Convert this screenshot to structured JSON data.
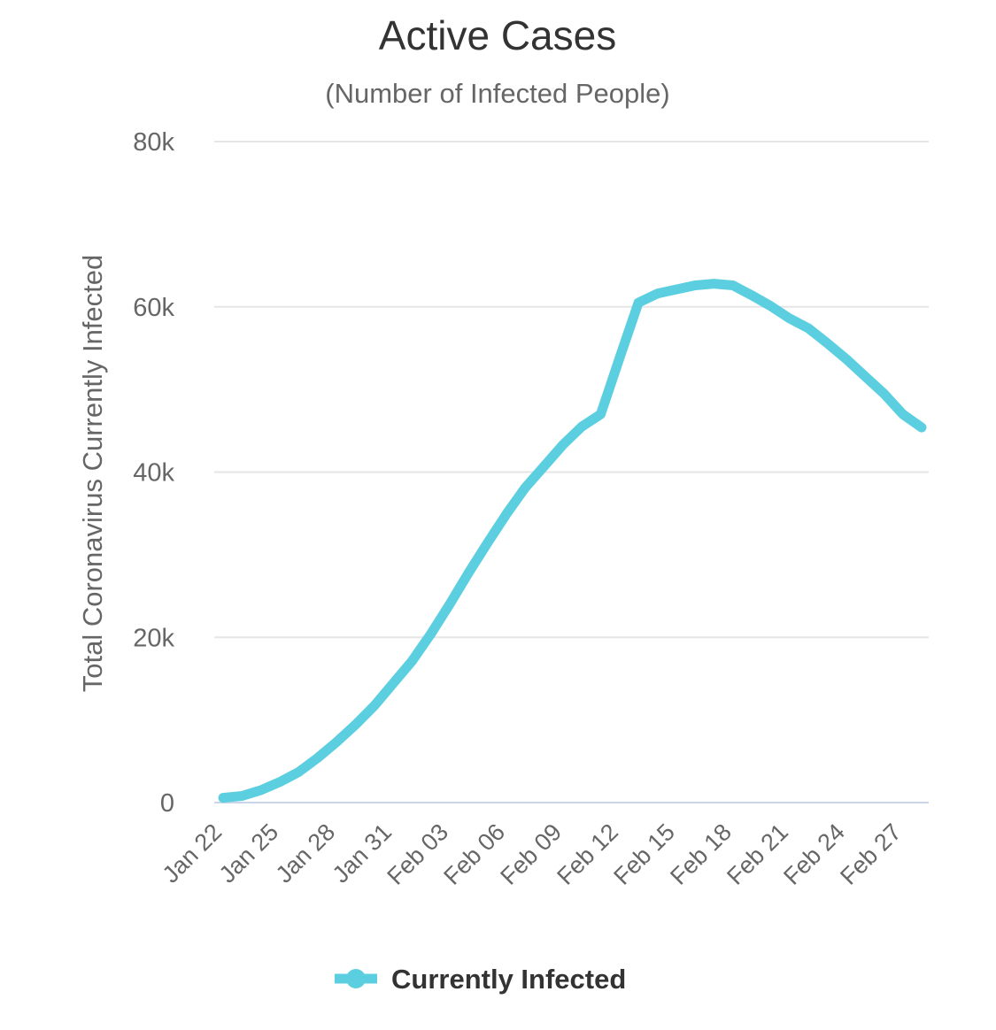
{
  "chart_data": {
    "type": "line",
    "title": "Active Cases",
    "subtitle": "(Number of Infected People)",
    "ylabel": "Total Coronavirus Currently Infected",
    "xlabel": "",
    "ylim": [
      0,
      80000
    ],
    "yticks": [
      0,
      20000,
      40000,
      60000,
      80000
    ],
    "ytick_labels": [
      "0",
      "20k",
      "40k",
      "60k",
      "80k"
    ],
    "xtick_labels": [
      "Jan 22",
      "Jan 25",
      "Jan 28",
      "Jan 31",
      "Feb 03",
      "Feb 06",
      "Feb 09",
      "Feb 12",
      "Feb 15",
      "Feb 18",
      "Feb 21",
      "Feb 24",
      "Feb 27"
    ],
    "grid": true,
    "legend": "bottom-center",
    "categories": [
      "Jan 22",
      "Jan 23",
      "Jan 24",
      "Jan 25",
      "Jan 26",
      "Jan 27",
      "Jan 28",
      "Jan 29",
      "Jan 30",
      "Jan 31",
      "Feb 01",
      "Feb 02",
      "Feb 03",
      "Feb 04",
      "Feb 05",
      "Feb 06",
      "Feb 07",
      "Feb 08",
      "Feb 09",
      "Feb 10",
      "Feb 11",
      "Feb 12",
      "Feb 13",
      "Feb 14",
      "Feb 15",
      "Feb 16",
      "Feb 17",
      "Feb 18",
      "Feb 19",
      "Feb 20",
      "Feb 21",
      "Feb 22",
      "Feb 23",
      "Feb 24",
      "Feb 25",
      "Feb 26",
      "Feb 27",
      "Feb 28"
    ],
    "series": [
      {
        "name": "Currently Infected",
        "color": "#5bcfdf",
        "values": [
          580,
          800,
          1500,
          2500,
          3700,
          5400,
          7300,
          9400,
          11700,
          14400,
          17100,
          20400,
          24000,
          27800,
          31400,
          34900,
          38100,
          40700,
          43300,
          45500,
          47000,
          53800,
          60500,
          61600,
          62100,
          62600,
          62800,
          62600,
          61400,
          60100,
          58600,
          57400,
          55600,
          53700,
          51600,
          49500,
          47000,
          45400
        ]
      }
    ]
  }
}
